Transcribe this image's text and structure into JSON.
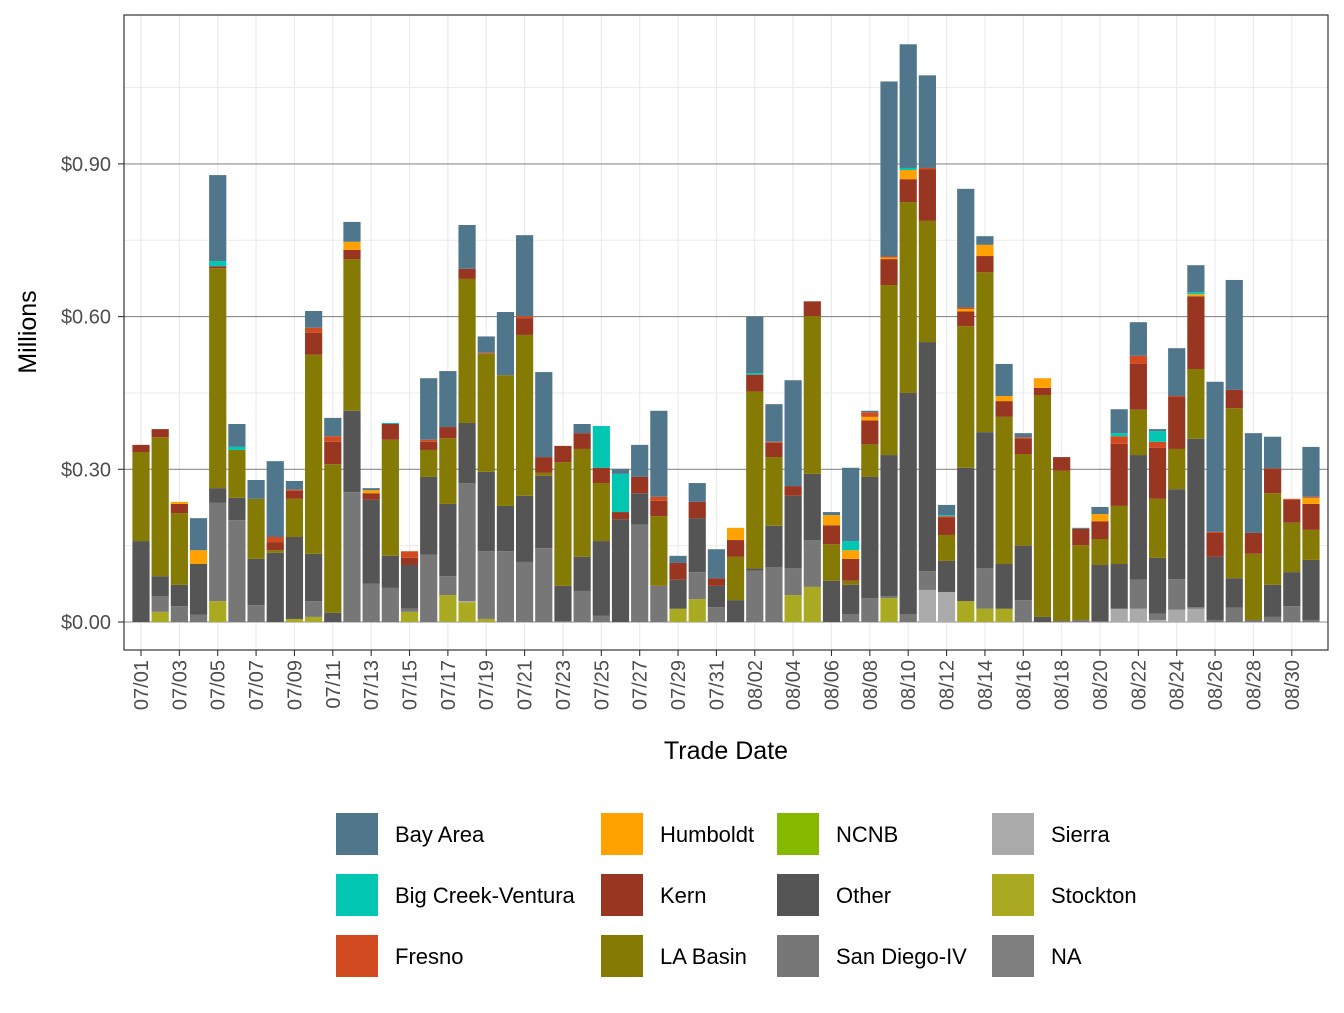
{
  "chart_data": {
    "type": "bar",
    "stacked": true,
    "xlabel": "Trade Date",
    "ylabel": "Millions",
    "ylim": [
      -0.05,
      1.16
    ],
    "y_ticks": [
      0,
      0.3,
      0.6,
      0.9
    ],
    "y_tick_labels": [
      "$0.00",
      "$0.30",
      "$0.60",
      "$0.90"
    ],
    "grid": true,
    "legend_position": "bottom",
    "categories": [
      "07/01",
      "07/02",
      "07/03",
      "07/04",
      "07/05",
      "07/06",
      "07/07",
      "07/08",
      "07/09",
      "07/10",
      "07/11",
      "07/12",
      "07/13",
      "07/14",
      "07/15",
      "07/16",
      "07/17",
      "07/18",
      "07/19",
      "07/20",
      "07/21",
      "07/22",
      "07/23",
      "07/24",
      "07/25",
      "07/26",
      "07/27",
      "07/28",
      "07/29",
      "07/30",
      "07/31",
      "08/01",
      "08/02",
      "08/03",
      "08/04",
      "08/05",
      "08/06",
      "08/07",
      "08/08",
      "08/09",
      "08/10",
      "08/11",
      "08/12",
      "08/13",
      "08/14",
      "08/15",
      "08/16",
      "08/17",
      "08/18",
      "08/19",
      "08/20",
      "08/21",
      "08/22",
      "08/23",
      "08/24",
      "08/25",
      "08/26",
      "08/27",
      "08/28",
      "08/29",
      "08/30",
      "08/31"
    ],
    "x_tick_labels": [
      "07/01",
      "07/03",
      "07/05",
      "07/07",
      "07/09",
      "07/11",
      "07/13",
      "07/15",
      "07/17",
      "07/19",
      "07/21",
      "07/23",
      "07/25",
      "07/27",
      "07/29",
      "07/31",
      "08/02",
      "08/04",
      "08/06",
      "08/08",
      "08/10",
      "08/12",
      "08/14",
      "08/16",
      "08/18",
      "08/20",
      "08/22",
      "08/24",
      "08/26",
      "08/28",
      "08/30"
    ],
    "series": [
      {
        "name": "Bay Area",
        "color": "#50768c",
        "values": [
          0,
          0,
          0,
          0.063,
          0.169,
          0.045,
          0.037,
          0.149,
          0.017,
          0.033,
          0.036,
          0.039,
          0.004,
          0,
          0,
          0.121,
          0.11,
          0.086,
          0.032,
          0.124,
          0.159,
          0.167,
          0,
          0.018,
          0,
          0.01,
          0.063,
          0.169,
          0.014,
          0.037,
          0.057,
          0,
          0.111,
          0.074,
          0.208,
          0,
          0.006,
          0.144,
          0.003,
          0.344,
          0.243,
          0.182,
          0.02,
          0.233,
          0.017,
          0.063,
          0.008,
          0,
          0,
          0.002,
          0.014,
          0.047,
          0.066,
          0.004,
          0.094,
          0.053,
          0.295,
          0.216,
          0.196,
          0.062,
          0,
          0.098
        ]
      },
      {
        "name": "Big Creek-Ventura",
        "color": "#00c6b2",
        "values": [
          0,
          0,
          0,
          0,
          0.01,
          0.006,
          0,
          0,
          0,
          0,
          0,
          0,
          0,
          0.002,
          0,
          0,
          0,
          0,
          0,
          0,
          0,
          0,
          0,
          0,
          0.082,
          0.075,
          0,
          0,
          0,
          0,
          0,
          0,
          0.003,
          0,
          0,
          0,
          0,
          0.018,
          0,
          0,
          0.004,
          0,
          0.002,
          0,
          0,
          0,
          0,
          0,
          0,
          0,
          0,
          0.006,
          0,
          0.021,
          0,
          0.004,
          0,
          0,
          0,
          0,
          0,
          0
        ]
      },
      {
        "name": "Fresno",
        "color": "#d14a20",
        "values": [
          0,
          0,
          0,
          0,
          0,
          0,
          0,
          0.01,
          0.002,
          0.01,
          0.011,
          0,
          0,
          0,
          0.013,
          0.004,
          0,
          0,
          0.002,
          0,
          0.004,
          0,
          0,
          0,
          0,
          0,
          0,
          0.008,
          0,
          0,
          0,
          0,
          0,
          0.002,
          0,
          0,
          0,
          0,
          0.009,
          0.002,
          0,
          0.003,
          0.002,
          0.003,
          0,
          0,
          0.002,
          0,
          0,
          0,
          0,
          0.015,
          0.016,
          0.012,
          0.002,
          0,
          0.002,
          0,
          0,
          0,
          0.002,
          0.002
        ]
      },
      {
        "name": "Humboldt",
        "color": "#ffa200",
        "values": [
          0,
          0,
          0.004,
          0.027,
          0,
          0,
          0,
          0,
          0,
          0,
          0,
          0.016,
          0.006,
          0,
          0,
          0,
          0,
          0,
          0,
          0,
          0,
          0,
          0,
          0,
          0,
          0,
          0,
          0,
          0,
          0,
          0,
          0.024,
          0,
          0,
          0,
          0,
          0.02,
          0.017,
          0.007,
          0.003,
          0.018,
          0,
          0,
          0.005,
          0.022,
          0.01,
          0,
          0.019,
          0,
          0,
          0.014,
          0,
          0,
          0,
          0,
          0.004,
          0,
          0,
          0,
          0,
          0,
          0.012
        ]
      },
      {
        "name": "Kern",
        "color": "#993622",
        "values": [
          0.014,
          0.016,
          0.018,
          0,
          0.004,
          0,
          0,
          0.016,
          0.016,
          0.043,
          0.044,
          0.018,
          0.013,
          0.031,
          0.014,
          0.016,
          0.022,
          0.02,
          0,
          0,
          0.033,
          0.031,
          0.032,
          0.031,
          0.03,
          0.014,
          0.032,
          0.03,
          0.033,
          0.032,
          0.015,
          0.033,
          0.033,
          0.028,
          0.019,
          0.029,
          0.037,
          0.043,
          0.047,
          0.051,
          0.045,
          0.101,
          0.035,
          0.029,
          0.032,
          0.031,
          0.031,
          0.014,
          0.027,
          0.032,
          0.035,
          0.122,
          0.09,
          0.1,
          0.102,
          0.143,
          0.047,
          0.036,
          0.041,
          0.049,
          0.045,
          0.051
        ]
      },
      {
        "name": "LA Basin",
        "color": "#847a04",
        "values": [
          0.175,
          0.273,
          0.141,
          0,
          0.432,
          0.094,
          0.118,
          0.005,
          0.075,
          0.391,
          0.292,
          0.298,
          0,
          0.228,
          0,
          0.053,
          0.129,
          0.283,
          0.232,
          0.257,
          0.316,
          0.006,
          0.243,
          0.212,
          0.114,
          0,
          0,
          0.137,
          0,
          0,
          0,
          0.085,
          0.348,
          0.135,
          0,
          0.31,
          0.072,
          0.008,
          0.064,
          0.334,
          0.375,
          0.238,
          0.051,
          0.278,
          0.314,
          0.289,
          0.18,
          0.436,
          0.295,
          0.147,
          0.051,
          0.114,
          0.089,
          0.116,
          0.079,
          0.137,
          0,
          0.334,
          0.13,
          0.18,
          0.097,
          0.059
        ]
      },
      {
        "name": "NCNB",
        "color": "#84b900",
        "values": [
          0,
          0,
          0,
          0,
          0,
          0,
          0,
          0,
          0,
          0,
          0,
          0,
          0,
          0,
          0,
          0,
          0,
          0,
          0,
          0,
          0,
          0,
          0,
          0,
          0,
          0,
          0,
          0,
          0,
          0,
          0,
          0,
          0,
          0,
          0,
          0,
          0,
          0,
          0,
          0,
          0,
          0,
          0,
          0,
          0,
          0,
          0,
          0,
          0,
          0,
          0,
          0,
          0,
          0,
          0,
          0,
          0,
          0,
          0,
          0,
          0,
          0
        ]
      },
      {
        "name": "Other",
        "color": "#555555",
        "values": [
          0.159,
          0.039,
          0.042,
          0.1,
          0.029,
          0.044,
          0.091,
          0.136,
          0.161,
          0.093,
          0.018,
          0.16,
          0.165,
          0.063,
          0.086,
          0.153,
          0.142,
          0.118,
          0.156,
          0.089,
          0.13,
          0.142,
          0.069,
          0.067,
          0.147,
          0.202,
          0.062,
          0,
          0.057,
          0.106,
          0.042,
          0.043,
          0.004,
          0.081,
          0.142,
          0.13,
          0.081,
          0.058,
          0.238,
          0.277,
          0.435,
          0.45,
          0.061,
          0.262,
          0.267,
          0.088,
          0.107,
          0.01,
          0,
          0,
          0.11,
          0.088,
          0.245,
          0.11,
          0.177,
          0.331,
          0.124,
          0.058,
          0,
          0.063,
          0.067,
          0.118
        ]
      },
      {
        "name": "San Diego-IV",
        "color": "#777777",
        "values": [
          0,
          0.031,
          0.031,
          0.014,
          0.193,
          0.2,
          0.033,
          0,
          0,
          0.031,
          0,
          0.255,
          0.075,
          0.067,
          0.006,
          0.132,
          0.037,
          0.232,
          0.133,
          0.139,
          0.118,
          0.145,
          0.002,
          0.061,
          0.012,
          0,
          0.191,
          0.071,
          0,
          0.053,
          0.029,
          0,
          0.101,
          0.108,
          0.053,
          0.092,
          0,
          0.015,
          0.047,
          0.004,
          0.015,
          0.037,
          0,
          0,
          0.08,
          0,
          0.043,
          0,
          0.002,
          0.004,
          0.002,
          0,
          0.057,
          0.012,
          0.06,
          0.003,
          0.004,
          0.028,
          0.004,
          0.01,
          0.031,
          0.004
        ]
      },
      {
        "name": "Sierra",
        "color": "#aaaaaa",
        "values": [
          0,
          0,
          0,
          0,
          0,
          0,
          0,
          0,
          0,
          0,
          0,
          0,
          0,
          0,
          0,
          0,
          0,
          0.002,
          0,
          0,
          0,
          0,
          0,
          0,
          0,
          0,
          0,
          0,
          0,
          0,
          0,
          0,
          0,
          0,
          0,
          0,
          0,
          0,
          0,
          0,
          0,
          0.063,
          0.059,
          0,
          0,
          0,
          0,
          0,
          0,
          0,
          0,
          0.026,
          0.026,
          0.004,
          0.024,
          0.026,
          0,
          0,
          0,
          0,
          0,
          0
        ]
      },
      {
        "name": "Stockton",
        "color": "#a9aa21",
        "values": [
          0,
          0.02,
          0,
          0,
          0.041,
          0,
          0,
          0,
          0.006,
          0.01,
          0,
          0,
          0,
          0,
          0.02,
          0,
          0.053,
          0.039,
          0.006,
          0,
          0,
          0,
          0,
          0,
          0,
          0,
          0,
          0,
          0.026,
          0.045,
          0,
          0,
          0,
          0,
          0.053,
          0.069,
          0,
          0,
          0,
          0.047,
          0,
          0,
          0,
          0.041,
          0.026,
          0.026,
          0,
          0,
          0,
          0,
          0,
          0,
          0,
          0,
          0,
          0,
          0,
          0,
          0,
          0,
          0,
          0
        ]
      },
      {
        "name": "NA",
        "color": "#7f7f7f",
        "values": [
          0,
          0,
          0,
          0,
          0,
          0,
          0,
          0,
          0,
          0,
          0,
          0,
          0,
          0,
          0,
          0,
          0,
          0,
          0,
          0,
          0,
          0,
          0,
          0,
          0,
          0,
          0,
          0,
          0,
          0,
          0,
          0,
          0,
          0,
          0,
          0,
          0,
          0,
          0,
          0,
          0,
          0,
          0,
          0,
          0,
          0,
          0,
          0,
          0,
          0,
          0,
          0,
          0,
          0,
          0,
          0,
          0,
          0,
          0,
          0,
          0,
          0
        ]
      }
    ]
  }
}
